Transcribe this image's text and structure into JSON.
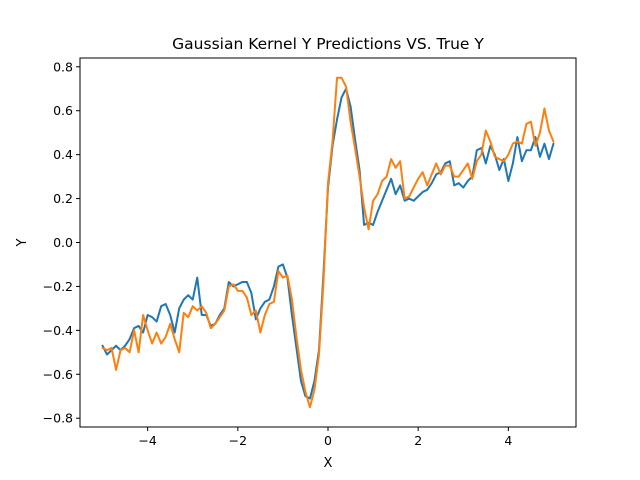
{
  "chart_data": {
    "type": "line",
    "title": "Gaussian Kernel Y Predictions VS. True Y",
    "xlabel": "X",
    "ylabel": "Y",
    "xlim": [
      -5.5,
      5.5
    ],
    "ylim": [
      -0.84,
      0.84
    ],
    "xticks": [
      -4,
      -2,
      0,
      2,
      4
    ],
    "xtick_labels": [
      "−4",
      "−2",
      "0",
      "2",
      "4"
    ],
    "yticks": [
      -0.8,
      -0.6,
      -0.4,
      -0.2,
      0.0,
      0.2,
      0.4,
      0.6,
      0.8
    ],
    "ytick_labels": [
      "−0.8",
      "−0.6",
      "−0.4",
      "−0.2",
      "0.0",
      "0.2",
      "0.4",
      "0.6",
      "0.8"
    ],
    "grid": false,
    "legend": "none",
    "x": [
      -5.0,
      -4.9,
      -4.8,
      -4.7,
      -4.6,
      -4.5,
      -4.4,
      -4.3,
      -4.2,
      -4.1,
      -4.0,
      -3.9,
      -3.8,
      -3.7,
      -3.6,
      -3.5,
      -3.4,
      -3.3,
      -3.2,
      -3.1,
      -3.0,
      -2.9,
      -2.8,
      -2.7,
      -2.6,
      -2.5,
      -2.4,
      -2.3,
      -2.2,
      -2.1,
      -2.0,
      -1.9,
      -1.8,
      -1.7,
      -1.6,
      -1.5,
      -1.4,
      -1.3,
      -1.2,
      -1.1,
      -1.0,
      -0.9,
      -0.8,
      -0.7,
      -0.6,
      -0.5,
      -0.4,
      -0.3,
      -0.2,
      -0.1,
      0.0,
      0.1,
      0.2,
      0.3,
      0.4,
      0.5,
      0.6,
      0.7,
      0.8,
      0.9,
      1.0,
      1.1,
      1.2,
      1.3,
      1.4,
      1.5,
      1.6,
      1.7,
      1.8,
      1.9,
      2.0,
      2.1,
      2.2,
      2.3,
      2.4,
      2.5,
      2.6,
      2.7,
      2.8,
      2.9,
      3.0,
      3.1,
      3.2,
      3.3,
      3.4,
      3.5,
      3.6,
      3.7,
      3.8,
      3.9,
      4.0,
      4.1,
      4.2,
      4.3,
      4.4,
      4.5,
      4.6,
      4.7,
      4.8,
      4.9,
      5.0
    ],
    "series": [
      {
        "color": "#1f77b4",
        "values": [
          -0.47,
          -0.51,
          -0.49,
          -0.47,
          -0.49,
          -0.47,
          -0.44,
          -0.39,
          -0.38,
          -0.41,
          -0.33,
          -0.34,
          -0.36,
          -0.29,
          -0.28,
          -0.33,
          -0.41,
          -0.3,
          -0.26,
          -0.24,
          -0.26,
          -0.16,
          -0.33,
          -0.33,
          -0.38,
          -0.37,
          -0.33,
          -0.3,
          -0.18,
          -0.2,
          -0.19,
          -0.18,
          -0.18,
          -0.23,
          -0.35,
          -0.3,
          -0.27,
          -0.26,
          -0.2,
          -0.11,
          -0.1,
          -0.16,
          -0.33,
          -0.48,
          -0.63,
          -0.7,
          -0.71,
          -0.63,
          -0.49,
          -0.14,
          0.25,
          0.44,
          0.56,
          0.66,
          0.7,
          0.62,
          0.47,
          0.33,
          0.08,
          0.09,
          0.08,
          0.14,
          0.19,
          0.24,
          0.29,
          0.22,
          0.26,
          0.19,
          0.2,
          0.19,
          0.21,
          0.23,
          0.24,
          0.27,
          0.31,
          0.32,
          0.36,
          0.37,
          0.26,
          0.27,
          0.25,
          0.28,
          0.3,
          0.42,
          0.43,
          0.36,
          0.44,
          0.4,
          0.33,
          0.38,
          0.28,
          0.36,
          0.48,
          0.37,
          0.42,
          0.42,
          0.48,
          0.39,
          0.45,
          0.38,
          0.45
        ]
      },
      {
        "color": "#ff7f0e",
        "values": [
          -0.48,
          -0.49,
          -0.48,
          -0.58,
          -0.49,
          -0.48,
          -0.5,
          -0.4,
          -0.5,
          -0.33,
          -0.4,
          -0.46,
          -0.41,
          -0.46,
          -0.43,
          -0.37,
          -0.44,
          -0.5,
          -0.32,
          -0.34,
          -0.29,
          -0.31,
          -0.29,
          -0.32,
          -0.39,
          -0.37,
          -0.34,
          -0.31,
          -0.2,
          -0.19,
          -0.22,
          -0.22,
          -0.25,
          -0.33,
          -0.31,
          -0.41,
          -0.33,
          -0.28,
          -0.27,
          -0.13,
          -0.16,
          -0.15,
          -0.26,
          -0.43,
          -0.58,
          -0.68,
          -0.75,
          -0.67,
          -0.51,
          -0.18,
          0.27,
          0.46,
          0.75,
          0.75,
          0.71,
          0.55,
          0.43,
          0.3,
          0.16,
          0.06,
          0.19,
          0.22,
          0.28,
          0.3,
          0.38,
          0.34,
          0.37,
          0.2,
          0.21,
          0.25,
          0.29,
          0.32,
          0.26,
          0.31,
          0.36,
          0.31,
          0.35,
          0.35,
          0.3,
          0.3,
          0.33,
          0.36,
          0.29,
          0.37,
          0.4,
          0.51,
          0.46,
          0.39,
          0.38,
          0.37,
          0.4,
          0.45,
          0.46,
          0.45,
          0.54,
          0.55,
          0.44,
          0.5,
          0.61,
          0.51,
          0.46
        ]
      }
    ]
  }
}
